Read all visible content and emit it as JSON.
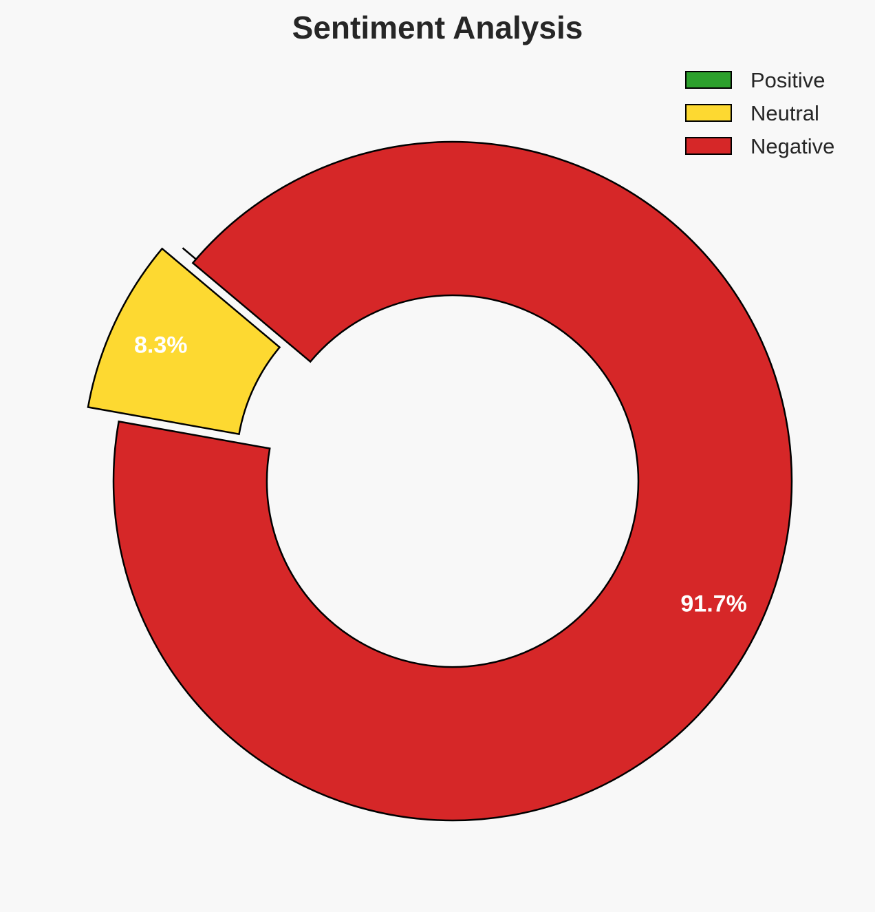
{
  "chart_data": {
    "type": "pie",
    "donut": true,
    "title": "Sentiment Analysis",
    "categories": [
      "Positive",
      "Neutral",
      "Negative"
    ],
    "values": [
      0.0,
      8.3,
      91.7
    ],
    "labels": [
      "",
      "8.3%",
      "91.7%"
    ],
    "colors": [
      "#2ca02c",
      "#fdd931",
      "#d62728"
    ],
    "explode": [
      0.05,
      0.1,
      0
    ],
    "start_angle": 140,
    "legend": {
      "placement": "top-right",
      "entries": [
        "Positive",
        "Neutral",
        "Negative"
      ]
    }
  }
}
